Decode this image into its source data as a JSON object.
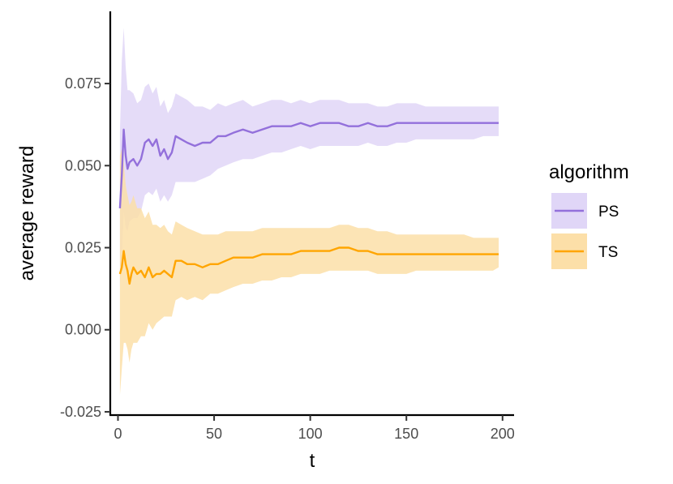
{
  "chart_data": {
    "type": "line",
    "xlabel": "t",
    "ylabel": "average reward",
    "xlim": [
      -4,
      206
    ],
    "ylim": [
      -0.026,
      0.097
    ],
    "x_ticks": [
      0,
      50,
      100,
      150,
      200
    ],
    "x_tick_labels": [
      "0",
      "50",
      "100",
      "150",
      "200"
    ],
    "y_ticks": [
      -0.025,
      0,
      0.025,
      0.05,
      0.075
    ],
    "y_tick_labels": [
      "-0.025",
      "0.000",
      "0.025",
      "0.050",
      "0.075"
    ],
    "grid": false,
    "legend": {
      "title": "algorithm",
      "position": "right"
    },
    "series": [
      {
        "name": "PS",
        "color": "#9370DB",
        "fill": "#E0D6F7",
        "x": [
          1,
          2,
          3,
          4,
          5,
          6,
          8,
          10,
          12,
          14,
          16,
          18,
          20,
          22,
          24,
          26,
          28,
          30,
          33,
          36,
          40,
          44,
          48,
          52,
          56,
          60,
          65,
          70,
          75,
          80,
          85,
          90,
          95,
          100,
          105,
          110,
          115,
          120,
          125,
          130,
          135,
          140,
          145,
          150,
          155,
          160,
          165,
          170,
          175,
          180,
          185,
          190,
          195,
          198
        ],
        "mean": [
          0.037,
          0.047,
          0.061,
          0.053,
          0.049,
          0.051,
          0.052,
          0.05,
          0.052,
          0.057,
          0.058,
          0.056,
          0.058,
          0.053,
          0.055,
          0.052,
          0.054,
          0.059,
          0.058,
          0.057,
          0.056,
          0.057,
          0.057,
          0.059,
          0.059,
          0.06,
          0.061,
          0.06,
          0.061,
          0.062,
          0.062,
          0.062,
          0.063,
          0.062,
          0.063,
          0.063,
          0.063,
          0.062,
          0.062,
          0.063,
          0.062,
          0.062,
          0.063,
          0.063,
          0.063,
          0.063,
          0.063,
          0.063,
          0.063,
          0.063,
          0.063,
          0.063,
          0.063,
          0.063
        ],
        "lower": [
          0.013,
          0.022,
          0.036,
          0.031,
          0.03,
          0.033,
          0.034,
          0.034,
          0.036,
          0.041,
          0.042,
          0.041,
          0.043,
          0.039,
          0.041,
          0.039,
          0.041,
          0.045,
          0.045,
          0.045,
          0.045,
          0.046,
          0.047,
          0.049,
          0.05,
          0.051,
          0.052,
          0.052,
          0.053,
          0.054,
          0.054,
          0.055,
          0.056,
          0.055,
          0.056,
          0.056,
          0.056,
          0.056,
          0.056,
          0.057,
          0.056,
          0.056,
          0.057,
          0.057,
          0.058,
          0.058,
          0.058,
          0.058,
          0.058,
          0.058,
          0.058,
          0.059,
          0.059,
          0.059
        ],
        "upper": [
          0.06,
          0.082,
          0.092,
          0.08,
          0.073,
          0.073,
          0.072,
          0.069,
          0.07,
          0.074,
          0.075,
          0.072,
          0.074,
          0.068,
          0.07,
          0.066,
          0.068,
          0.072,
          0.071,
          0.07,
          0.068,
          0.068,
          0.067,
          0.069,
          0.068,
          0.069,
          0.07,
          0.068,
          0.069,
          0.07,
          0.07,
          0.069,
          0.07,
          0.069,
          0.07,
          0.07,
          0.07,
          0.069,
          0.069,
          0.069,
          0.068,
          0.068,
          0.069,
          0.069,
          0.069,
          0.068,
          0.068,
          0.068,
          0.068,
          0.068,
          0.068,
          0.068,
          0.068,
          0.068
        ]
      },
      {
        "name": "TS",
        "color": "#FFA500",
        "fill": "#FCDFA8",
        "x": [
          1,
          2,
          3,
          4,
          5,
          6,
          7,
          8,
          10,
          12,
          14,
          16,
          18,
          20,
          22,
          24,
          26,
          28,
          30,
          33,
          36,
          40,
          44,
          48,
          52,
          56,
          60,
          65,
          70,
          75,
          80,
          85,
          90,
          95,
          100,
          105,
          110,
          115,
          120,
          125,
          130,
          135,
          140,
          145,
          150,
          155,
          160,
          165,
          170,
          175,
          180,
          185,
          190,
          195,
          198
        ],
        "mean": [
          0.017,
          0.019,
          0.024,
          0.02,
          0.018,
          0.014,
          0.017,
          0.019,
          0.017,
          0.018,
          0.016,
          0.019,
          0.016,
          0.017,
          0.017,
          0.018,
          0.017,
          0.016,
          0.021,
          0.021,
          0.02,
          0.02,
          0.019,
          0.02,
          0.02,
          0.021,
          0.022,
          0.022,
          0.022,
          0.023,
          0.023,
          0.023,
          0.023,
          0.024,
          0.024,
          0.024,
          0.024,
          0.025,
          0.025,
          0.024,
          0.024,
          0.023,
          0.023,
          0.023,
          0.023,
          0.023,
          0.023,
          0.023,
          0.023,
          0.023,
          0.023,
          0.023,
          0.023,
          0.023,
          0.023
        ],
        "lower": [
          -0.02,
          -0.012,
          -0.004,
          -0.004,
          -0.006,
          -0.01,
          -0.006,
          -0.004,
          -0.004,
          -0.002,
          -0.002,
          0.002,
          0.0,
          0.002,
          0.003,
          0.004,
          0.004,
          0.004,
          0.009,
          0.01,
          0.009,
          0.01,
          0.009,
          0.011,
          0.011,
          0.012,
          0.013,
          0.014,
          0.014,
          0.015,
          0.015,
          0.016,
          0.016,
          0.017,
          0.017,
          0.017,
          0.018,
          0.018,
          0.018,
          0.018,
          0.018,
          0.017,
          0.017,
          0.017,
          0.017,
          0.018,
          0.018,
          0.018,
          0.018,
          0.018,
          0.018,
          0.018,
          0.018,
          0.018,
          0.019
        ],
        "upper": [
          0.053,
          0.055,
          0.051,
          0.044,
          0.041,
          0.038,
          0.039,
          0.041,
          0.037,
          0.037,
          0.034,
          0.036,
          0.032,
          0.032,
          0.031,
          0.032,
          0.03,
          0.029,
          0.033,
          0.032,
          0.031,
          0.03,
          0.029,
          0.029,
          0.029,
          0.03,
          0.03,
          0.03,
          0.03,
          0.031,
          0.031,
          0.031,
          0.031,
          0.031,
          0.031,
          0.031,
          0.031,
          0.032,
          0.032,
          0.031,
          0.031,
          0.03,
          0.03,
          0.029,
          0.029,
          0.029,
          0.029,
          0.029,
          0.029,
          0.029,
          0.029,
          0.028,
          0.028,
          0.028,
          0.028
        ]
      }
    ]
  }
}
